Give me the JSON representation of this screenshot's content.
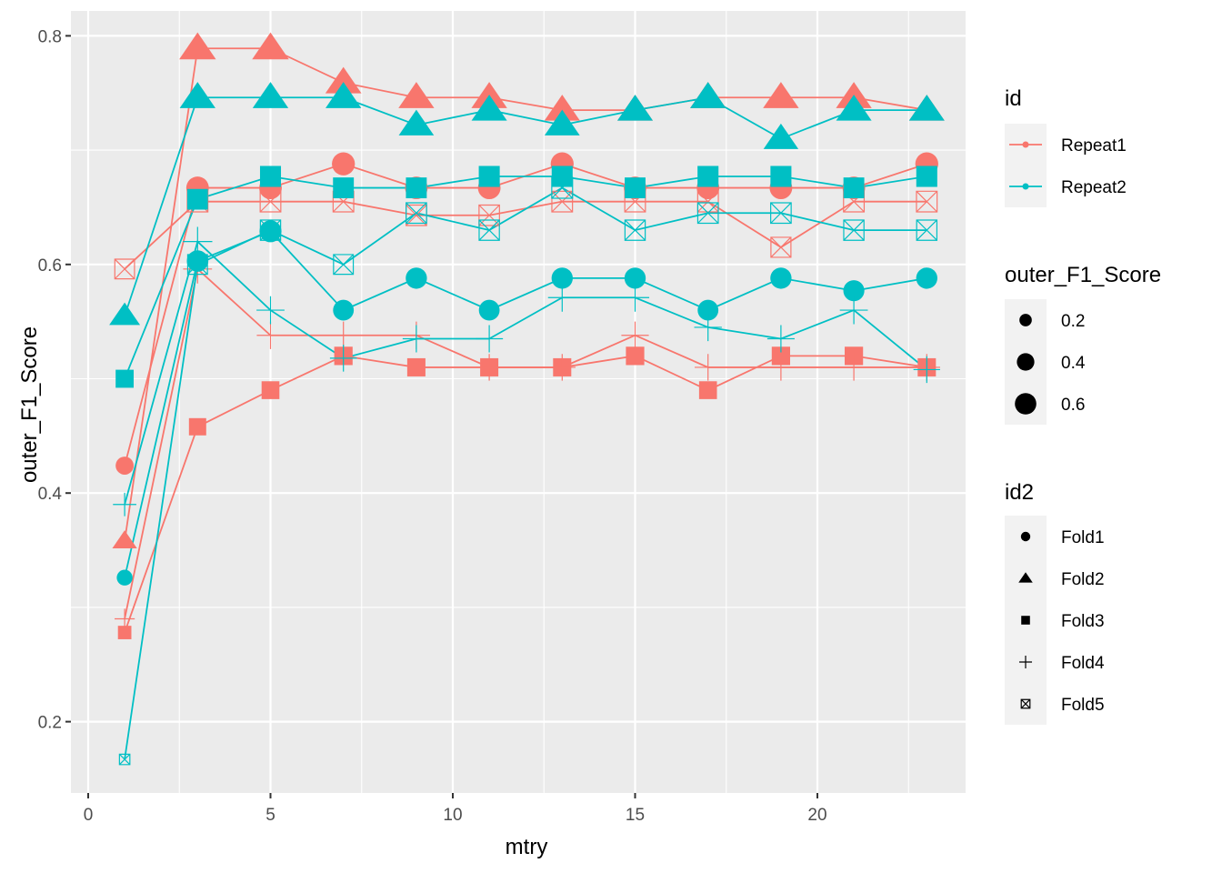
{
  "chart_data": {
    "type": "scatter",
    "xlabel": "mtry",
    "ylabel": "outer_F1_Score",
    "xlim": [
      -0.1,
      23.6
    ],
    "ylim": [
      0.135,
      0.82
    ],
    "x_ticks": [
      0,
      5,
      10,
      15,
      20
    ],
    "x_tick_labels": [
      "0",
      "5",
      "10",
      "15",
      "20"
    ],
    "y_ticks": [
      0.2,
      0.4,
      0.6,
      0.8
    ],
    "y_tick_labels": [
      "0.2",
      "0.4",
      "0.6",
      "0.8"
    ],
    "x_minor_ticks": [
      2.5,
      7.5,
      12.5,
      17.5,
      22.5
    ],
    "y_minor_ticks": [
      0.3,
      0.5,
      0.7
    ],
    "grid": true,
    "lines_connect": "id",
    "x": [
      1,
      3,
      5,
      7,
      9,
      11,
      13,
      15,
      17,
      19,
      21,
      23
    ],
    "colors": {
      "Repeat1": "#F8766D",
      "Repeat2": "#00BFC4"
    },
    "legends": [
      {
        "title": "id",
        "placement": "right",
        "entries": [
          "Repeat1",
          "Repeat2"
        ]
      },
      {
        "title": "outer_F1_Score",
        "placement": "right",
        "entries": [
          "0.2",
          "0.4",
          "0.6"
        ],
        "values": [
          0.2,
          0.4,
          0.6
        ]
      },
      {
        "title": "id2",
        "placement": "right",
        "entries": [
          "Fold1",
          "Fold2",
          "Fold3",
          "Fold4",
          "Fold5"
        ],
        "shapes": [
          "circle",
          "triangle",
          "square",
          "plus",
          "boxx"
        ]
      }
    ],
    "series": [
      {
        "id": "Repeat1",
        "id2": "Fold1",
        "shape": "circle",
        "values": [
          0.424,
          0.667,
          0.667,
          0.688,
          0.667,
          0.667,
          0.688,
          0.667,
          0.667,
          0.667,
          0.667,
          0.688
        ]
      },
      {
        "id": "Repeat1",
        "id2": "Fold2",
        "shape": "triangle",
        "values": [
          0.358,
          0.789,
          0.789,
          0.759,
          0.746,
          0.746,
          0.735,
          0.735,
          0.746,
          0.746,
          0.746,
          0.735
        ]
      },
      {
        "id": "Repeat1",
        "id2": "Fold3",
        "shape": "square",
        "values": [
          0.278,
          0.458,
          0.49,
          0.52,
          0.51,
          0.51,
          0.51,
          0.52,
          0.49,
          0.52,
          0.52,
          0.51
        ]
      },
      {
        "id": "Repeat1",
        "id2": "Fold4",
        "shape": "plus",
        "values": [
          0.29,
          0.596,
          0.538,
          0.538,
          0.538,
          0.51,
          0.51,
          0.538,
          0.51,
          0.51,
          0.51,
          0.51
        ]
      },
      {
        "id": "Repeat1",
        "id2": "Fold5",
        "shape": "boxx",
        "values": [
          0.596,
          0.655,
          0.655,
          0.655,
          0.643,
          0.643,
          0.655,
          0.655,
          0.655,
          0.615,
          0.655,
          0.655
        ]
      },
      {
        "id": "Repeat2",
        "id2": "Fold1",
        "shape": "circle",
        "values": [
          0.326,
          0.603,
          0.629,
          0.56,
          0.588,
          0.56,
          0.588,
          0.588,
          0.56,
          0.588,
          0.577,
          0.588
        ]
      },
      {
        "id": "Repeat2",
        "id2": "Fold2",
        "shape": "triangle",
        "values": [
          0.555,
          0.746,
          0.746,
          0.746,
          0.722,
          0.735,
          0.722,
          0.735,
          0.746,
          0.71,
          0.735,
          0.735
        ]
      },
      {
        "id": "Repeat2",
        "id2": "Fold3",
        "shape": "square",
        "values": [
          0.5,
          0.657,
          0.677,
          0.667,
          0.667,
          0.677,
          0.677,
          0.667,
          0.677,
          0.677,
          0.667,
          0.677
        ]
      },
      {
        "id": "Repeat2",
        "id2": "Fold4",
        "shape": "plus",
        "values": [
          0.39,
          0.62,
          0.56,
          0.518,
          0.535,
          0.535,
          0.571,
          0.571,
          0.545,
          0.535,
          0.56,
          0.508
        ]
      },
      {
        "id": "Repeat2",
        "id2": "Fold5",
        "shape": "boxx",
        "values": [
          0.167,
          0.6,
          0.63,
          0.6,
          0.645,
          0.63,
          0.667,
          0.63,
          0.645,
          0.645,
          0.63,
          0.63
        ]
      }
    ]
  }
}
